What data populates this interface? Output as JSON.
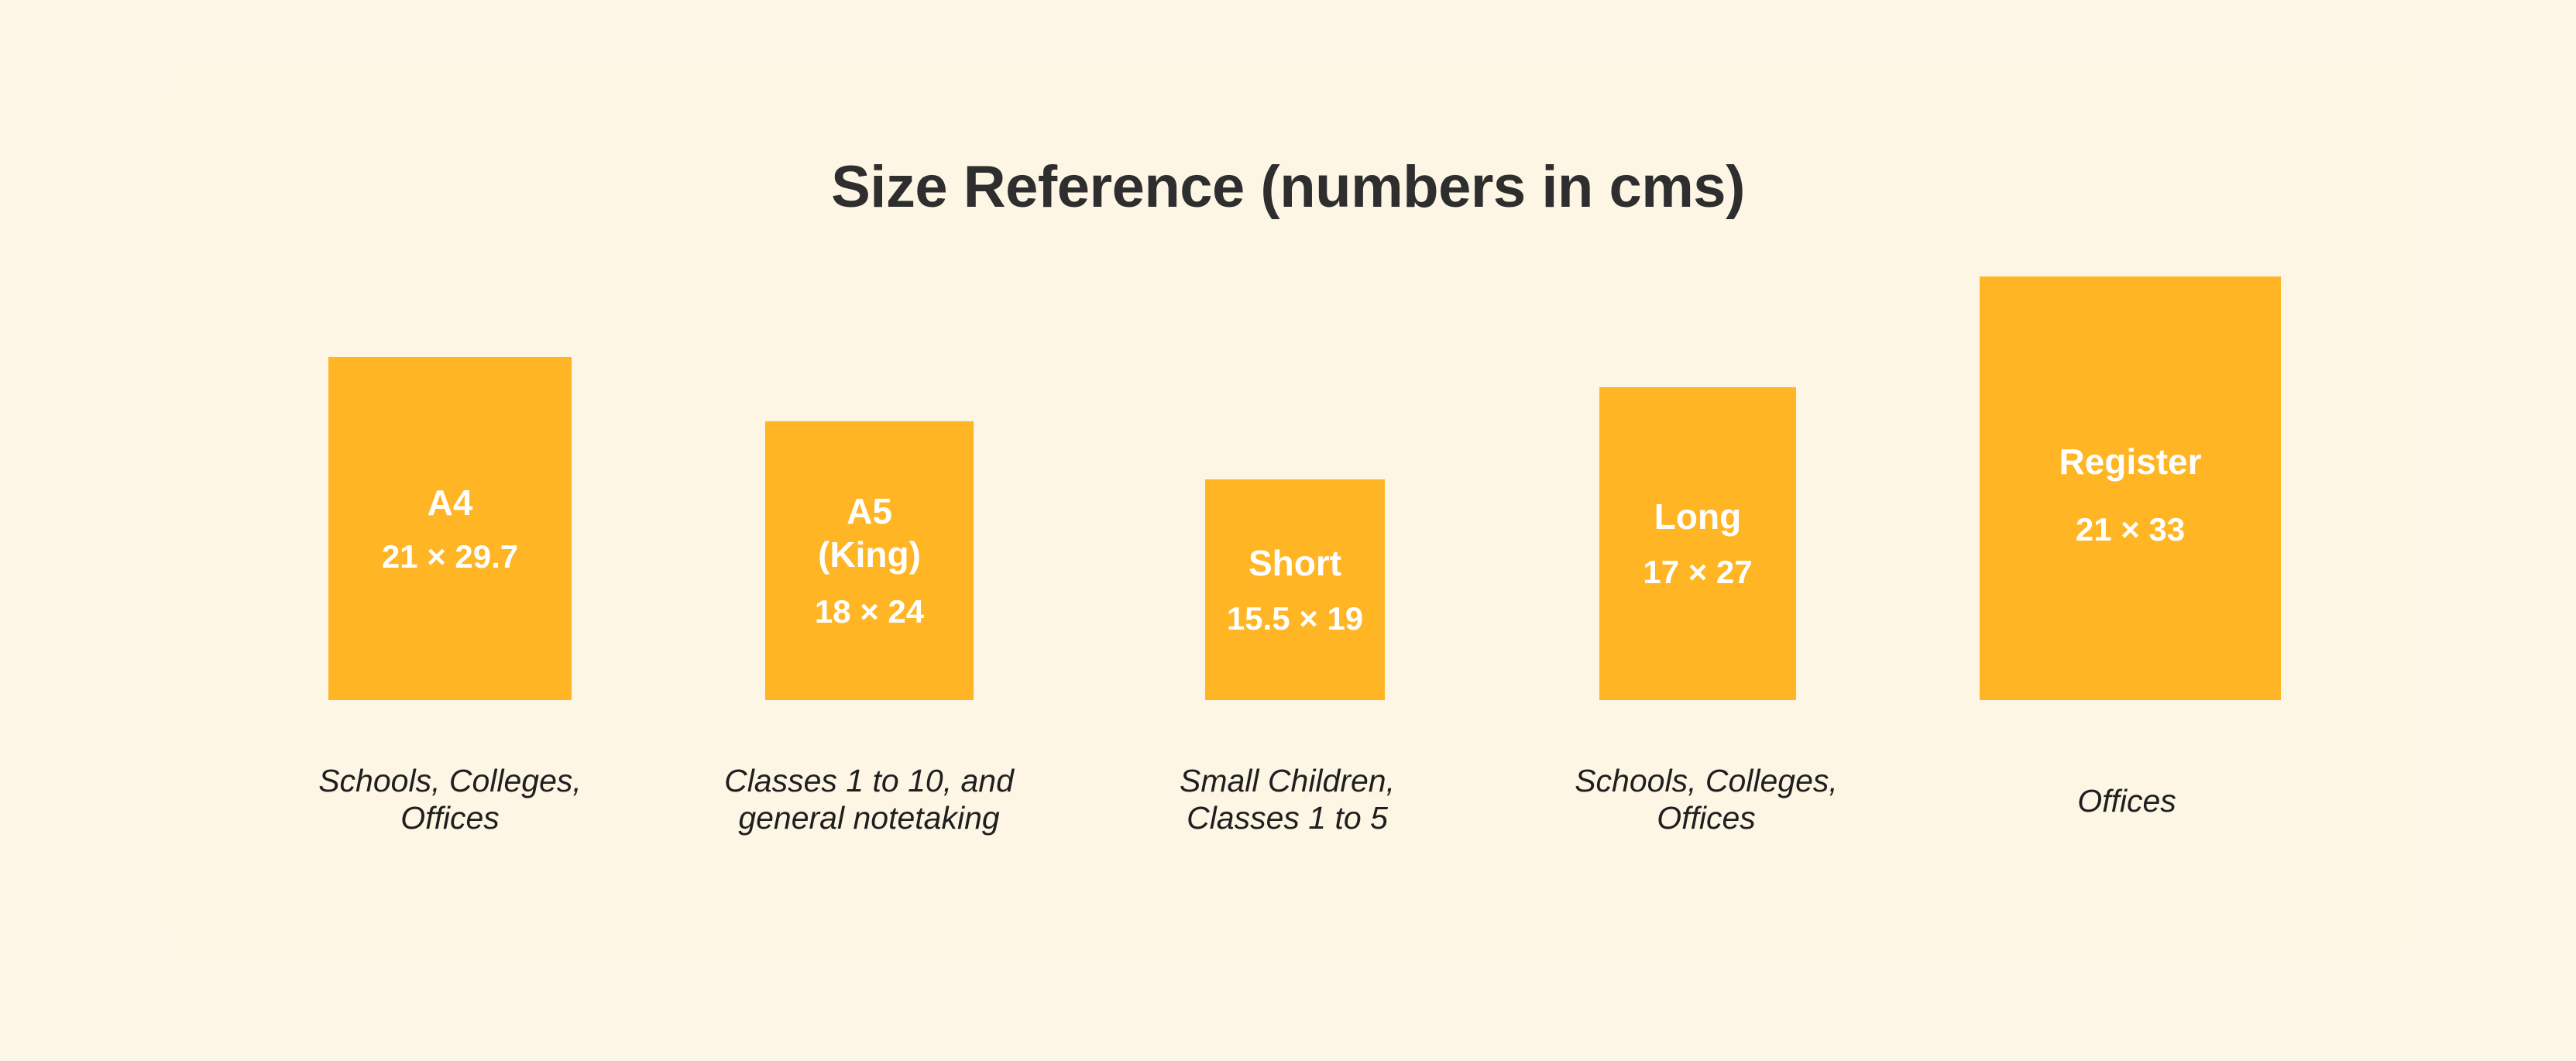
{
  "title": "Size Reference (numbers in cms)",
  "colors": {
    "background": "#fdf5e6",
    "box": "#ffb524",
    "box_text": "#ffffff",
    "title_text": "#2e2e2e",
    "caption_text": "#1f1f1f"
  },
  "sizes": [
    {
      "name": "A4",
      "dimensions": "21 × 29.7",
      "usage": "Schools, Colleges,\nOffices"
    },
    {
      "name": "A5\n(King)",
      "dimensions": "18 × 24",
      "usage": "Classes 1 to 10, and\ngeneral notetaking"
    },
    {
      "name": "Short",
      "dimensions": "15.5 × 19",
      "usage": "Small Children,\nClasses 1 to 5"
    },
    {
      "name": "Long",
      "dimensions": "17 × 27",
      "usage": "Schools, Colleges,\nOffices"
    },
    {
      "name": "Register",
      "dimensions": "21 × 33",
      "usage": "Offices"
    }
  ]
}
